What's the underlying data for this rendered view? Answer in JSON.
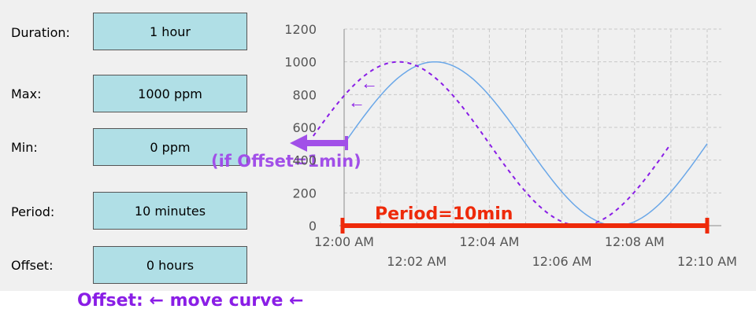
{
  "form": {
    "duration": {
      "label": "Duration:",
      "value": "1 hour"
    },
    "max": {
      "label": "Max:",
      "value": "1000 ppm"
    },
    "min": {
      "label": "Min:",
      "value": "0 ppm"
    },
    "period": {
      "label": "Period:",
      "value": "10 minutes"
    },
    "offset": {
      "label": "Offset:",
      "value": "0 hours"
    }
  },
  "annotations": {
    "offset_note": "(if Offset=1min)",
    "period_note": "Period=10min",
    "bottom_note": "Offset: ← move curve ←",
    "arrow_glyph": "←"
  },
  "colors": {
    "panel": "#f0f0f0",
    "field": "#b0dfe6",
    "series": "#6aa7e8",
    "annotation_purple": "#8a1ee6",
    "annotation_red": "#ee2a0a"
  },
  "chart_data": {
    "type": "line",
    "ylim": [
      0,
      1200
    ],
    "yticks": [
      0,
      200,
      400,
      600,
      800,
      1000,
      1200
    ],
    "x_range_minutes": [
      0,
      10
    ],
    "xticks_top": [
      {
        "m": 0,
        "label": "12:00 AM"
      },
      {
        "m": 4,
        "label": "12:04 AM"
      },
      {
        "m": 8,
        "label": "12:08 AM"
      }
    ],
    "xticks_bottom": [
      {
        "m": 2,
        "label": "12:02 AM"
      },
      {
        "m": 6,
        "label": "12:06 AM"
      },
      {
        "m": 10,
        "label": "12:10 AM"
      }
    ],
    "grid": true,
    "series": [
      {
        "max": 1000,
        "min": 0,
        "period_min": 10,
        "peak_min": 2.5,
        "style": "solid"
      }
    ],
    "offset_example": {
      "max": 1000,
      "min": 0,
      "period_min": 10,
      "peak_min": 1.5,
      "style": "dashed"
    }
  }
}
